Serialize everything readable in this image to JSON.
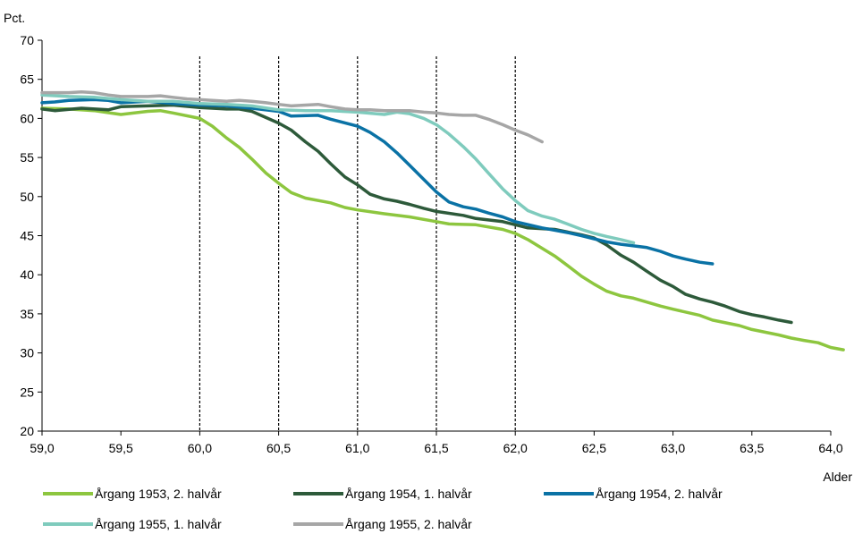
{
  "chart_data": {
    "type": "line",
    "title": "",
    "ylabel": "Pct.",
    "xlabel": "Alder",
    "xlim": [
      59.0,
      64.0
    ],
    "ylim": [
      20,
      70
    ],
    "x_ticks": [
      "59,0",
      "59,5",
      "60,0",
      "60,5",
      "61,0",
      "61,5",
      "62,0",
      "62,5",
      "63,0",
      "63,5",
      "64,0"
    ],
    "x_tick_values": [
      59.0,
      59.5,
      60.0,
      60.5,
      61.0,
      61.5,
      62.0,
      62.5,
      63.0,
      63.5,
      64.0
    ],
    "y_ticks": [
      "20",
      "25",
      "30",
      "35",
      "40",
      "45",
      "50",
      "55",
      "60",
      "65",
      "70"
    ],
    "y_tick_values": [
      20,
      25,
      30,
      35,
      40,
      45,
      50,
      55,
      60,
      65,
      70
    ],
    "grid": false,
    "reference_lines": [
      60.0,
      60.5,
      61.0,
      61.5,
      62.0
    ],
    "legend_position": "bottom",
    "series": [
      {
        "name": "Årgang 1953, 2. halvår",
        "color": "#8dc63f",
        "points": [
          [
            59.0,
            61.3
          ],
          [
            59.17,
            61.2
          ],
          [
            59.33,
            61.0
          ],
          [
            59.5,
            60.5
          ],
          [
            59.67,
            60.9
          ],
          [
            59.75,
            61.0
          ],
          [
            59.83,
            60.7
          ],
          [
            60.0,
            60.0
          ],
          [
            60.08,
            59.0
          ],
          [
            60.17,
            57.5
          ],
          [
            60.25,
            56.3
          ],
          [
            60.33,
            54.8
          ],
          [
            60.42,
            53.0
          ],
          [
            60.5,
            51.7
          ],
          [
            60.58,
            50.5
          ],
          [
            60.67,
            49.8
          ],
          [
            60.83,
            49.2
          ],
          [
            60.92,
            48.6
          ],
          [
            61.0,
            48.3
          ],
          [
            61.17,
            47.8
          ],
          [
            61.33,
            47.4
          ],
          [
            61.5,
            46.8
          ],
          [
            61.58,
            46.5
          ],
          [
            61.75,
            46.4
          ],
          [
            61.92,
            45.8
          ],
          [
            62.0,
            45.3
          ],
          [
            62.08,
            44.5
          ],
          [
            62.25,
            42.4
          ],
          [
            62.33,
            41.2
          ],
          [
            62.42,
            39.8
          ],
          [
            62.5,
            38.8
          ],
          [
            62.58,
            37.9
          ],
          [
            62.67,
            37.3
          ],
          [
            62.75,
            37.0
          ],
          [
            62.92,
            36.0
          ],
          [
            63.0,
            35.6
          ],
          [
            63.17,
            34.8
          ],
          [
            63.25,
            34.2
          ],
          [
            63.42,
            33.5
          ],
          [
            63.5,
            33.0
          ],
          [
            63.67,
            32.3
          ],
          [
            63.75,
            31.9
          ],
          [
            63.83,
            31.6
          ],
          [
            63.92,
            31.3
          ],
          [
            64.0,
            30.7
          ],
          [
            64.08,
            30.4
          ]
        ]
      },
      {
        "name": "Årgang 1954, 1. halvår",
        "color": "#2d5a3a",
        "points": [
          [
            59.0,
            61.2
          ],
          [
            59.08,
            61.0
          ],
          [
            59.25,
            61.3
          ],
          [
            59.42,
            61.1
          ],
          [
            59.5,
            61.5
          ],
          [
            59.67,
            61.6
          ],
          [
            59.83,
            61.7
          ],
          [
            60.0,
            61.4
          ],
          [
            60.17,
            61.2
          ],
          [
            60.25,
            61.2
          ],
          [
            60.33,
            60.9
          ],
          [
            60.5,
            59.4
          ],
          [
            60.58,
            58.5
          ],
          [
            60.67,
            57.0
          ],
          [
            60.75,
            55.8
          ],
          [
            60.83,
            54.2
          ],
          [
            60.92,
            52.5
          ],
          [
            61.0,
            51.5
          ],
          [
            61.08,
            50.3
          ],
          [
            61.17,
            49.7
          ],
          [
            61.25,
            49.4
          ],
          [
            61.33,
            49.0
          ],
          [
            61.42,
            48.5
          ],
          [
            61.5,
            48.1
          ],
          [
            61.67,
            47.6
          ],
          [
            61.75,
            47.2
          ],
          [
            61.92,
            46.8
          ],
          [
            62.0,
            46.4
          ],
          [
            62.08,
            46.0
          ],
          [
            62.25,
            45.8
          ],
          [
            62.42,
            45.1
          ],
          [
            62.5,
            44.7
          ],
          [
            62.58,
            43.8
          ],
          [
            62.67,
            42.5
          ],
          [
            62.75,
            41.6
          ],
          [
            62.83,
            40.5
          ],
          [
            62.92,
            39.3
          ],
          [
            63.0,
            38.5
          ],
          [
            63.08,
            37.5
          ],
          [
            63.17,
            36.9
          ],
          [
            63.25,
            36.5
          ],
          [
            63.33,
            36.0
          ],
          [
            63.42,
            35.3
          ],
          [
            63.5,
            34.9
          ],
          [
            63.58,
            34.6
          ],
          [
            63.67,
            34.2
          ],
          [
            63.75,
            33.9
          ]
        ]
      },
      {
        "name": "Årgang 1954, 2. halvår",
        "color": "#0a72a5",
        "points": [
          [
            59.0,
            62.0
          ],
          [
            59.08,
            62.1
          ],
          [
            59.17,
            62.3
          ],
          [
            59.33,
            62.4
          ],
          [
            59.42,
            62.3
          ],
          [
            59.5,
            62.0
          ],
          [
            59.67,
            62.2
          ],
          [
            59.83,
            61.9
          ],
          [
            60.0,
            61.7
          ],
          [
            60.17,
            61.6
          ],
          [
            60.33,
            61.3
          ],
          [
            60.5,
            60.9
          ],
          [
            60.58,
            60.3
          ],
          [
            60.75,
            60.4
          ],
          [
            60.83,
            59.9
          ],
          [
            61.0,
            59.0
          ],
          [
            61.08,
            58.2
          ],
          [
            61.17,
            57.0
          ],
          [
            61.25,
            55.6
          ],
          [
            61.33,
            54.0
          ],
          [
            61.42,
            52.2
          ],
          [
            61.5,
            50.6
          ],
          [
            61.58,
            49.3
          ],
          [
            61.67,
            48.7
          ],
          [
            61.75,
            48.4
          ],
          [
            61.83,
            47.9
          ],
          [
            61.92,
            47.4
          ],
          [
            62.0,
            46.8
          ],
          [
            62.17,
            46.0
          ],
          [
            62.33,
            45.4
          ],
          [
            62.42,
            45.0
          ],
          [
            62.5,
            44.6
          ],
          [
            62.58,
            44.2
          ],
          [
            62.67,
            43.9
          ],
          [
            62.75,
            43.7
          ],
          [
            62.83,
            43.5
          ],
          [
            62.92,
            43.0
          ],
          [
            63.0,
            42.4
          ],
          [
            63.08,
            42.0
          ],
          [
            63.17,
            41.6
          ],
          [
            63.25,
            41.4
          ]
        ]
      },
      {
        "name": "Årgang 1955, 1. halvår",
        "color": "#7fcbbd",
        "points": [
          [
            59.0,
            63.0
          ],
          [
            59.17,
            62.8
          ],
          [
            59.33,
            62.7
          ],
          [
            59.5,
            62.4
          ],
          [
            59.67,
            62.2
          ],
          [
            59.83,
            62.2
          ],
          [
            60.0,
            61.9
          ],
          [
            60.17,
            61.8
          ],
          [
            60.33,
            61.6
          ],
          [
            60.5,
            61.1
          ],
          [
            60.67,
            61.0
          ],
          [
            60.83,
            61.0
          ],
          [
            61.0,
            60.8
          ],
          [
            61.17,
            60.5
          ],
          [
            61.25,
            60.8
          ],
          [
            61.33,
            60.6
          ],
          [
            61.42,
            60.0
          ],
          [
            61.5,
            59.2
          ],
          [
            61.58,
            58.0
          ],
          [
            61.67,
            56.4
          ],
          [
            61.75,
            54.8
          ],
          [
            61.83,
            53.0
          ],
          [
            61.92,
            51.0
          ],
          [
            62.0,
            49.5
          ],
          [
            62.08,
            48.2
          ],
          [
            62.17,
            47.5
          ],
          [
            62.25,
            47.1
          ],
          [
            62.33,
            46.5
          ],
          [
            62.42,
            45.8
          ],
          [
            62.5,
            45.3
          ],
          [
            62.58,
            44.9
          ],
          [
            62.67,
            44.5
          ],
          [
            62.75,
            44.1
          ]
        ]
      },
      {
        "name": "Årgang 1955, 2. halvår",
        "color": "#a6a6a6",
        "points": [
          [
            59.0,
            63.3
          ],
          [
            59.08,
            63.3
          ],
          [
            59.17,
            63.3
          ],
          [
            59.25,
            63.4
          ],
          [
            59.33,
            63.3
          ],
          [
            59.42,
            63.0
          ],
          [
            59.5,
            62.8
          ],
          [
            59.58,
            62.8
          ],
          [
            59.67,
            62.8
          ],
          [
            59.75,
            62.9
          ],
          [
            59.83,
            62.7
          ],
          [
            59.92,
            62.5
          ],
          [
            60.0,
            62.4
          ],
          [
            60.08,
            62.3
          ],
          [
            60.17,
            62.2
          ],
          [
            60.25,
            62.3
          ],
          [
            60.33,
            62.2
          ],
          [
            60.42,
            62.0
          ],
          [
            60.5,
            61.8
          ],
          [
            60.58,
            61.6
          ],
          [
            60.67,
            61.7
          ],
          [
            60.75,
            61.8
          ],
          [
            60.83,
            61.5
          ],
          [
            60.92,
            61.2
          ],
          [
            61.0,
            61.1
          ],
          [
            61.08,
            61.1
          ],
          [
            61.17,
            61.0
          ],
          [
            61.25,
            61.0
          ],
          [
            61.33,
            61.0
          ],
          [
            61.42,
            60.8
          ],
          [
            61.5,
            60.7
          ],
          [
            61.58,
            60.5
          ],
          [
            61.67,
            60.4
          ],
          [
            61.75,
            60.4
          ],
          [
            61.83,
            59.9
          ],
          [
            61.92,
            59.2
          ],
          [
            62.0,
            58.5
          ],
          [
            62.08,
            57.9
          ],
          [
            62.17,
            57.0
          ]
        ]
      }
    ]
  }
}
